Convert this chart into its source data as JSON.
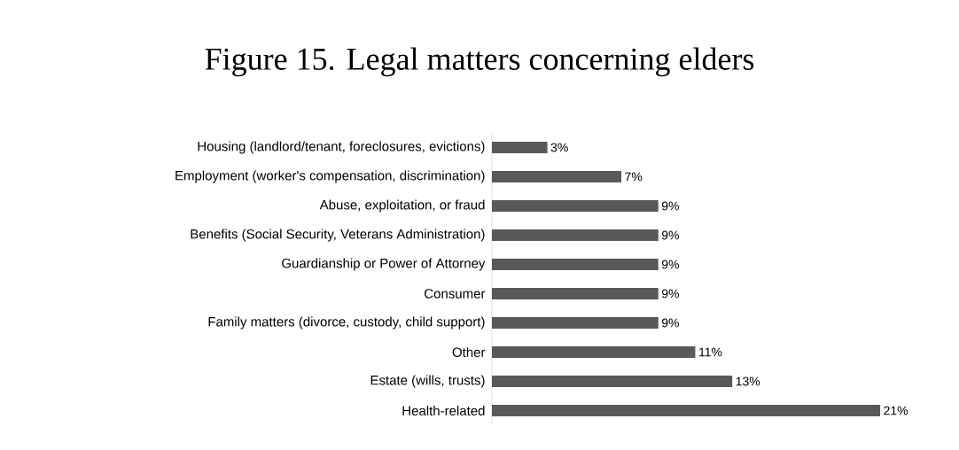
{
  "chart_data": {
    "type": "bar",
    "orientation": "horizontal",
    "title": "Figure 15. Legal matters concerning elders",
    "categories": [
      "Housing (landlord/tenant, foreclosures,  evictions)",
      "Employment (worker's compensation, discrimination)",
      "Abuse, exploitation, or fraud",
      "Benefits (Social Security, Veterans Administration)",
      "Guardianship or Power of Attorney",
      "Consumer",
      "Family matters (divorce, custody, child support)",
      "Other",
      "Estate (wills, trusts)",
      "Health-related"
    ],
    "values": [
      3,
      7,
      9,
      9,
      9,
      9,
      9,
      11,
      13,
      21
    ],
    "value_labels": [
      "3%",
      "7%",
      "9%",
      "9%",
      "9%",
      "9%",
      "9%",
      "11%",
      "13%",
      "21%"
    ],
    "color": "#595959"
  }
}
